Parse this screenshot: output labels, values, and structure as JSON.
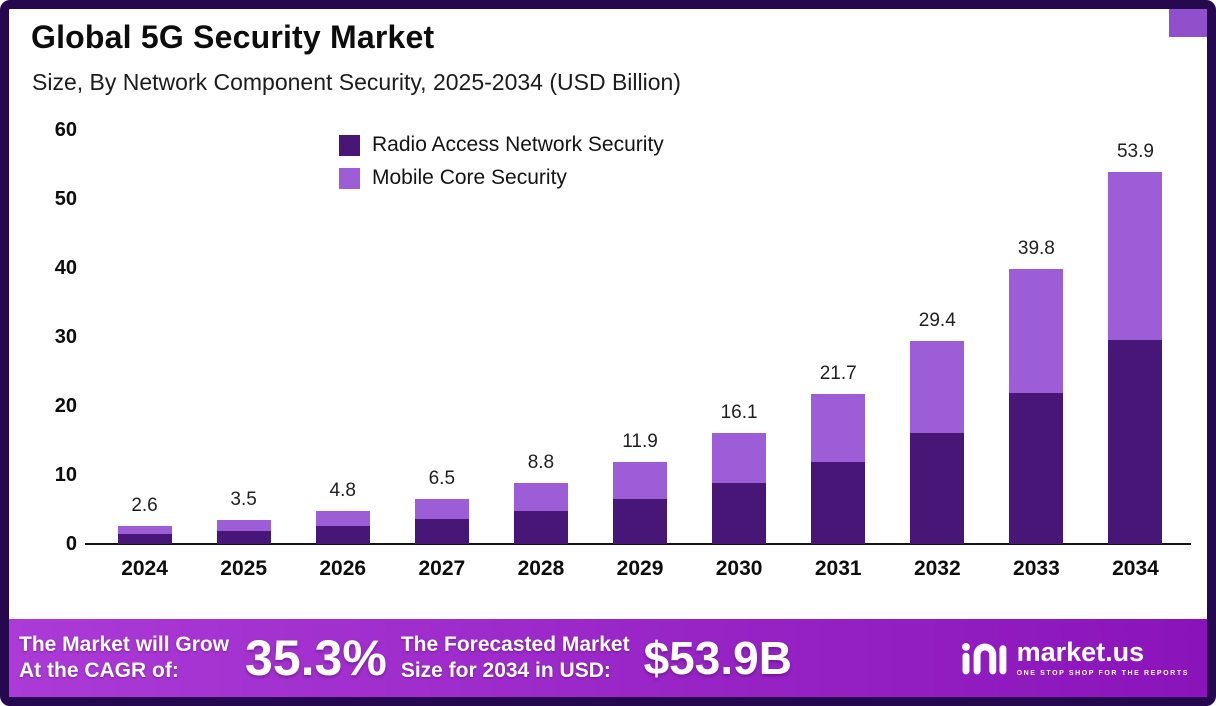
{
  "title": "Global 5G Security Market",
  "subtitle": "Size, By Network Component Security, 2025-2034 (USD Billion)",
  "colors": {
    "series1": "#481677",
    "series2": "#9c5dd6",
    "border": "#26084e",
    "corner_accent": "#9050cc",
    "banner_from": "#ab3ad6",
    "banner_to": "#8a14ba"
  },
  "chart_data": {
    "type": "bar",
    "stacked": true,
    "title": "Global 5G Security Market",
    "subtitle": "Size, By Network Component Security, 2025-2034 (USD Billion)",
    "xlabel": "",
    "ylabel": "USD Billion",
    "ylim": [
      0,
      60
    ],
    "yticks": [
      0,
      10,
      20,
      30,
      40,
      50,
      60
    ],
    "grid": false,
    "legend_position": "top",
    "categories": [
      "2024",
      "2025",
      "2026",
      "2027",
      "2028",
      "2029",
      "2030",
      "2031",
      "2032",
      "2033",
      "2034"
    ],
    "series": [
      {
        "name": "Radio Access Network Security",
        "color": "#481677",
        "values": [
          1.4,
          1.9,
          2.6,
          3.6,
          4.8,
          6.5,
          8.8,
          11.9,
          16.1,
          21.9,
          29.6
        ]
      },
      {
        "name": "Mobile Core Security",
        "color": "#9c5dd6",
        "values": [
          1.2,
          1.6,
          2.2,
          2.9,
          4.0,
          5.4,
          7.3,
          9.8,
          13.3,
          17.9,
          24.3
        ]
      }
    ],
    "totals": [
      2.6,
      3.5,
      4.8,
      6.5,
      8.8,
      11.9,
      16.1,
      21.7,
      29.4,
      39.8,
      53.9
    ],
    "total_labels": [
      "2.6",
      "3.5",
      "4.8",
      "6.5",
      "8.8",
      "11.9",
      "16.1",
      "21.7",
      "29.4",
      "39.8",
      "53.9"
    ]
  },
  "footer": {
    "left_line1": "The Market will Grow",
    "left_line2": "At the CAGR of:",
    "cagr_value": "35.3%",
    "mid_line1": "The Forecasted Market",
    "mid_line2": "Size for 2034 in USD:",
    "forecast_value": "$53.9B",
    "brand": "market.us",
    "brand_tagline": "ONE STOP SHOP FOR THE REPORTS"
  }
}
